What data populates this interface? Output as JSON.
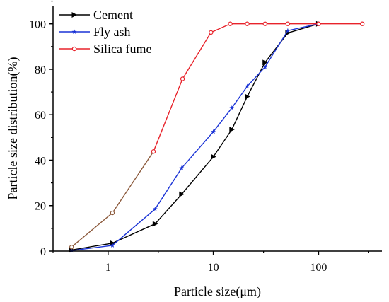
{
  "chart_data": {
    "type": "line",
    "title": "",
    "xlabel": "Particle size(μm)",
    "ylabel": "Particle size distribution(%)",
    "x_scale": "log",
    "xlim": [
      0.3,
      400
    ],
    "ylim": [
      0,
      108
    ],
    "x_ticks": [
      1,
      10,
      100
    ],
    "x_tick_labels": [
      "1",
      "10",
      "100"
    ],
    "y_ticks": [
      0,
      20,
      40,
      60,
      80,
      100
    ],
    "y_tick_labels": [
      "0",
      "20",
      "40",
      "60",
      "80",
      "100"
    ],
    "legend_position": "top-left",
    "series": [
      {
        "name": "Cement",
        "color": "#000000",
        "marker": "triangle-right",
        "x": [
          0.45,
          1.1,
          2.8,
          5.0,
          10,
          15,
          21,
          31,
          51,
          100
        ],
        "y": [
          0.5,
          3.5,
          12,
          25,
          41.5,
          53.5,
          68,
          83,
          96,
          100
        ]
      },
      {
        "name": "Fly ash",
        "color": "#1a33d6",
        "marker": "star",
        "x": [
          0.45,
          1.1,
          2.8,
          5.0,
          10,
          15,
          21,
          31,
          51,
          100
        ],
        "y": [
          0.2,
          2.5,
          18.5,
          36.5,
          52.5,
          63,
          72.5,
          81,
          97,
          100
        ]
      },
      {
        "name": "Silica fume",
        "color": "#e8232b",
        "low_segment_color": "#8c5a3c",
        "marker": "circle",
        "x": [
          0.45,
          1.1,
          2.7,
          5.1,
          9.5,
          14.5,
          21,
          31,
          51,
          100,
          260
        ],
        "y": [
          1.8,
          16.8,
          43.8,
          75.8,
          96.2,
          100,
          100,
          100,
          100,
          100,
          100
        ]
      }
    ]
  }
}
